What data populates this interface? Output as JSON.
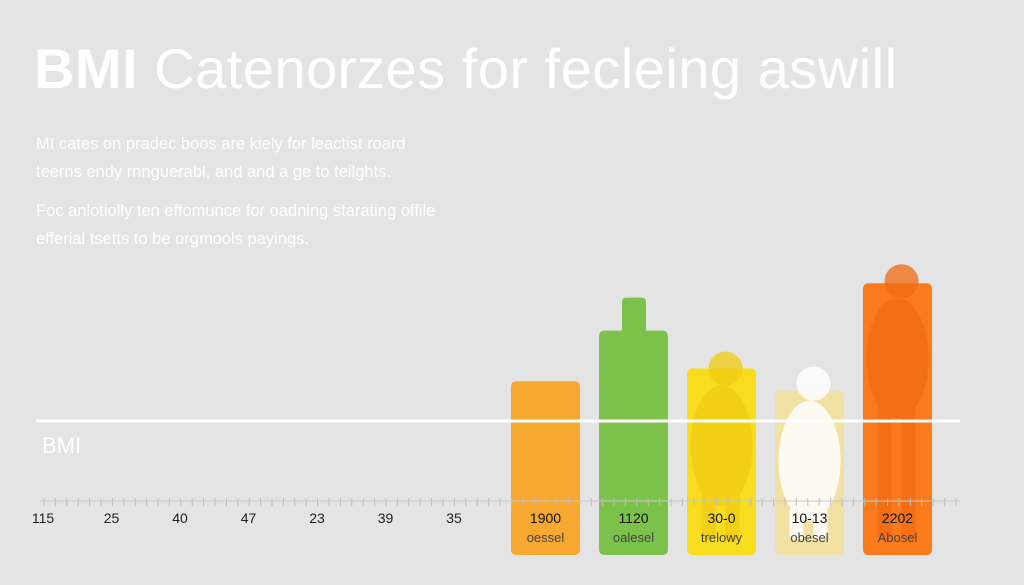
{
  "header": {
    "title_bold": "BMI",
    "title_rest": "Catenorzes for fecleing aswill"
  },
  "intro": {
    "paragraph_1": "MI cates on pradec boos are kiely for leactist roard teerns endy rnnguerabl, and and a ge to teilghts.",
    "paragraph_2": "Foc anlotiolly ten effomunce for oadning starating offile efferial tsetts to be orgmools payings."
  },
  "chart_data": {
    "type": "bar",
    "title": "BMI Catenorzes for fecleing aswill",
    "xlabel": "",
    "ylabel": "BMI",
    "axis_ticks": [
      "115",
      "25",
      "40",
      "47",
      "23",
      "39",
      "35"
    ],
    "categories": [
      "oessel",
      "oalesel",
      "trelowy",
      "obesel",
      "Abosel"
    ],
    "value_labels": [
      "1900",
      "1120",
      "30-0",
      "10-13",
      "2202"
    ],
    "heights": [
      55,
      71,
      59,
      52,
      86
    ],
    "height_scale": [
      0,
      100
    ],
    "colors": [
      "#f7a830",
      "#7cc24a",
      "#f8dc1e",
      "#f1e1a2",
      "#fa7a1c"
    ],
    "figure_layer": [
      false,
      false,
      true,
      true,
      true
    ],
    "guide_line": true
  }
}
